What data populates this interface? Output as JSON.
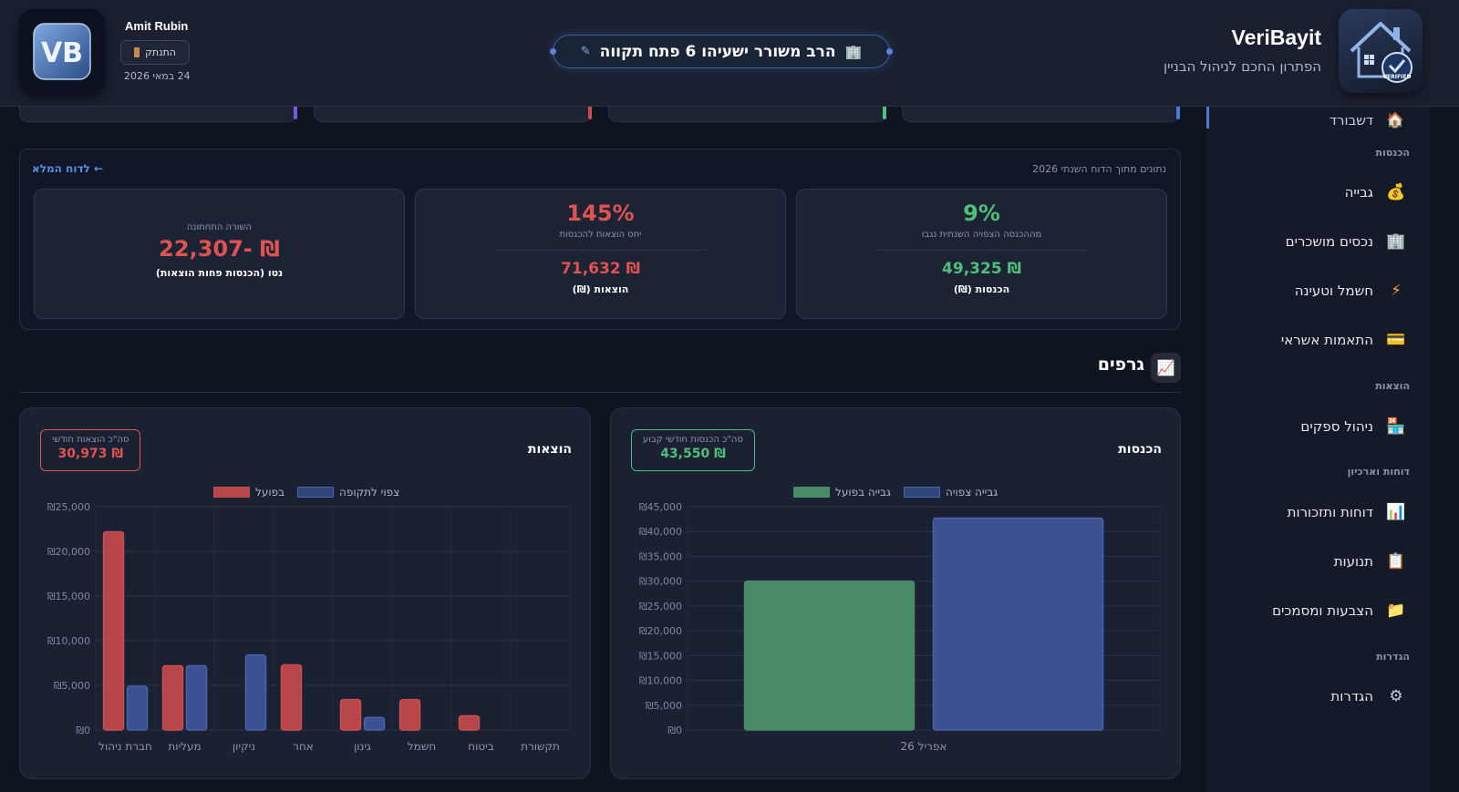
{
  "header": {
    "brand_name": "VeriBayit",
    "brand_tagline": "הפתרון החכם לניהול הבניין",
    "building_name": "הרב משורר ישעיהו 6 פתח תקווה",
    "user_name": "Amit Rubin",
    "logout_label": "התנתק",
    "date": "24 במאי 2026",
    "user_logo_text": "VB",
    "brand_badge_text": "VERIFIED"
  },
  "sidebar": {
    "active_item_partial": "דשבורד",
    "sections": [
      {
        "title": "הכנסות",
        "items": [
          {
            "label": "גבייה",
            "icon": "money-bag-icon",
            "glyph": "💰"
          },
          {
            "label": "נכסים מושכרים",
            "icon": "office-building-icon",
            "glyph": "🏢"
          },
          {
            "label": "חשמל וטעינה",
            "icon": "lightning-icon",
            "glyph": "⚡"
          },
          {
            "label": "התאמות אשראי",
            "icon": "credit-card-icon",
            "glyph": "💳"
          }
        ]
      },
      {
        "title": "הוצאות",
        "items": [
          {
            "label": "ניהול ספקים",
            "icon": "store-icon",
            "glyph": "🏪"
          }
        ]
      },
      {
        "title": "דוחות וארכיון",
        "items": [
          {
            "label": "דוחות ותזכורות",
            "icon": "bar-chart-icon",
            "glyph": "📊"
          },
          {
            "label": "תנועות",
            "icon": "clipboard-icon",
            "glyph": "📋"
          },
          {
            "label": "הצבעות ומסמכים",
            "icon": "folder-icon",
            "glyph": "📁"
          }
        ]
      },
      {
        "title": "הגדרות",
        "items": [
          {
            "label": "הגדרות",
            "icon": "gear-icon",
            "glyph": "⚙"
          }
        ]
      }
    ]
  },
  "summary": {
    "note": "נתונים מתוך הדוח השנתי 2026",
    "full_report_link": "← לדוח המלא",
    "cards": [
      {
        "main": "9%",
        "sub": "מההכנסה הצפויה השנתית נגבו",
        "value": "₪ 49,325",
        "label": "הכנסות (₪)"
      },
      {
        "main": "145%",
        "sub": "יחס הוצאות להכנסות",
        "value": "₪ 71,632",
        "label": "הוצאות (₪)"
      },
      {
        "main_label": "השורה התחתונה",
        "value": "₪ -22,307",
        "label": "נטו (הכנסות פחות הוצאות)"
      }
    ]
  },
  "charts_section": {
    "title": "גרפים",
    "icon": "chart-up-icon"
  },
  "colors": {
    "green": "#4fbf7a",
    "red": "#e0534f",
    "blue": "#3b5190",
    "bar_red": "#b8454a",
    "bar_green": "#4a8a68"
  },
  "income_panel": {
    "title": "הכנסות",
    "total_label": "סה\"כ הכנסות חודשי קבוע",
    "total_value": "₪ 43,550"
  },
  "expenses_panel": {
    "title": "הוצאות",
    "total_label": "סה\"כ הוצאות חודשי",
    "total_value": "₪ 30,973"
  },
  "chart_data": [
    {
      "type": "bar",
      "title": "הכנסות",
      "categories": [
        "אפריל 26"
      ],
      "series": [
        {
          "name": "גבייה בפועל",
          "values": [
            30000
          ]
        },
        {
          "name": "גבייה צפויה",
          "values": [
            42700
          ]
        }
      ],
      "ylim": [
        0,
        45000
      ],
      "yticks": [
        "₪0",
        "₪5,000",
        "₪10,000",
        "₪15,000",
        "₪20,000",
        "₪25,000",
        "₪30,000",
        "₪35,000",
        "₪40,000",
        "₪45,000"
      ],
      "grid": true,
      "legend": "top-center"
    },
    {
      "type": "bar",
      "title": "הוצאות",
      "categories": [
        "חברת ניהול",
        "מעליות",
        "ניקיון",
        "אחר",
        "גינון",
        "חשמל",
        "ביטוח",
        "תקשורת"
      ],
      "series": [
        {
          "name": "בפועל",
          "values": [
            22200,
            7200,
            0,
            7300,
            3400,
            3400,
            1600,
            0
          ]
        },
        {
          "name": "צפוי לתקופה",
          "values": [
            4900,
            7200,
            8400,
            0,
            1400,
            0,
            0,
            0
          ]
        }
      ],
      "ylim": [
        0,
        25000
      ],
      "yticks": [
        "₪0",
        "₪5,000",
        "₪10,000",
        "₪15,000",
        "₪20,000",
        "₪25,000"
      ],
      "grid": true,
      "legend": "top-center"
    }
  ]
}
